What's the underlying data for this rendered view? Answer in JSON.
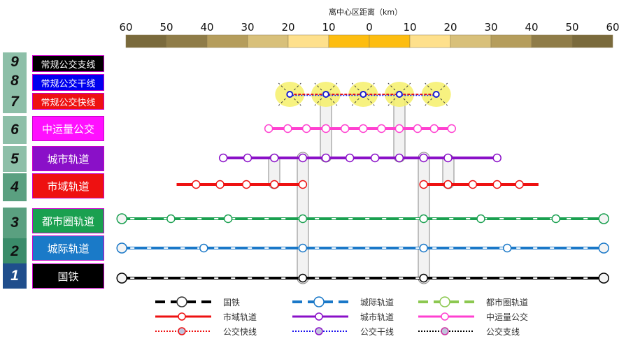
{
  "scale": {
    "title": "离中心区距离（km）",
    "ticks": [
      "60",
      "50",
      "40",
      "30",
      "20",
      "10",
      "0",
      "10",
      "20",
      "30",
      "40",
      "50",
      "60"
    ],
    "colors": [
      "#7a6a3c",
      "#8f7c48",
      "#b59d5c",
      "#d8c07a",
      "#fee08c",
      "#fdbd10",
      "#fdbd10",
      "#fee08c",
      "#d8c07a",
      "#b59d5c",
      "#8f7c48",
      "#7a6a3c"
    ]
  },
  "layers": [
    {
      "num": "9",
      "label": "常规公交支线",
      "color": "#000000"
    },
    {
      "num": "8",
      "label": "常规公交干线",
      "color": "#0000ee"
    },
    {
      "num": "7",
      "label": "常规公交快线",
      "color": "#ee1111"
    },
    {
      "num": "6",
      "label": "中运量公交",
      "color": "#ff10ff"
    },
    {
      "num": "5",
      "label": "城市轨道",
      "color": "#8a10c8"
    },
    {
      "num": "4",
      "label": "市域轨道",
      "color": "#ee1111"
    },
    {
      "num": "3",
      "label": "都市圈轨道",
      "color": "#1aa050"
    },
    {
      "num": "2",
      "label": "城际轨道",
      "color": "#1a7ac8"
    },
    {
      "num": "1",
      "label": "国铁",
      "color": "#000000"
    }
  ],
  "lines": [
    {
      "name": "国铁",
      "color": "#000000",
      "style": "rail",
      "stations_km": [
        -61,
        -16.4,
        13.4,
        57.8
      ]
    },
    {
      "name": "城际轨道",
      "color": "#1a78c8",
      "style": "rail",
      "stations_km": [
        -61,
        -40.8,
        -16.4,
        13.4,
        34,
        57.8
      ]
    },
    {
      "name": "都市圈轨道",
      "color": "#1aa050",
      "style": "rail",
      "stations_km": [
        -61,
        -48.9,
        -34.8,
        -16.4,
        13.4,
        27.5,
        46,
        57.8
      ]
    },
    {
      "name": "市域轨道",
      "color": "#ee1111",
      "style": "solid",
      "segments_km": [
        [
          -47.5,
          -16.4
        ],
        [
          13.4,
          41.7
        ]
      ],
      "stations_km": [
        -42.7,
        -36.8,
        -30.3,
        -23.4,
        -16.4,
        13.4,
        19.4,
        25.5,
        31.5,
        37
      ]
    },
    {
      "name": "城市轨道",
      "color": "#8a10c8",
      "style": "solid",
      "stations_km": [
        -36,
        -30,
        -23.4,
        -16.4,
        -10.7,
        -4.8,
        1.4,
        7.4,
        13.4,
        19.4,
        31.5
      ]
    },
    {
      "name": "中运量公交",
      "color": "#ff40d0",
      "style": "solid",
      "stations_km": [
        -24.8,
        -20.1,
        -15.5,
        -10.7,
        -6,
        -1.5,
        3,
        7.4,
        11.9,
        16,
        20.3
      ]
    },
    {
      "name": "公交快线/干线",
      "color": "#ee1111",
      "style": "bus",
      "stations_km": [
        -19.6,
        -10.7,
        -1.5,
        7.4,
        16.5
      ]
    }
  ],
  "legend": [
    {
      "label": "国铁",
      "color": "#000000",
      "style": "rail"
    },
    {
      "label": "城际轨道",
      "color": "#1a78c8",
      "style": "rail"
    },
    {
      "label": "都市圈轨道",
      "color": "#8cc850",
      "style": "rail"
    },
    {
      "label": "市域轨道",
      "color": "#ee1111",
      "style": "solid"
    },
    {
      "label": "城市轨道",
      "color": "#8a10c8",
      "style": "solid"
    },
    {
      "label": "中运量公交",
      "color": "#ff40d0",
      "style": "solid"
    },
    {
      "label": "公交快线",
      "color": "#ee1111",
      "style": "dot"
    },
    {
      "label": "公交干线",
      "color": "#1a10ee",
      "style": "dot"
    },
    {
      "label": "公交支线",
      "color": "#000000",
      "style": "dot"
    }
  ]
}
